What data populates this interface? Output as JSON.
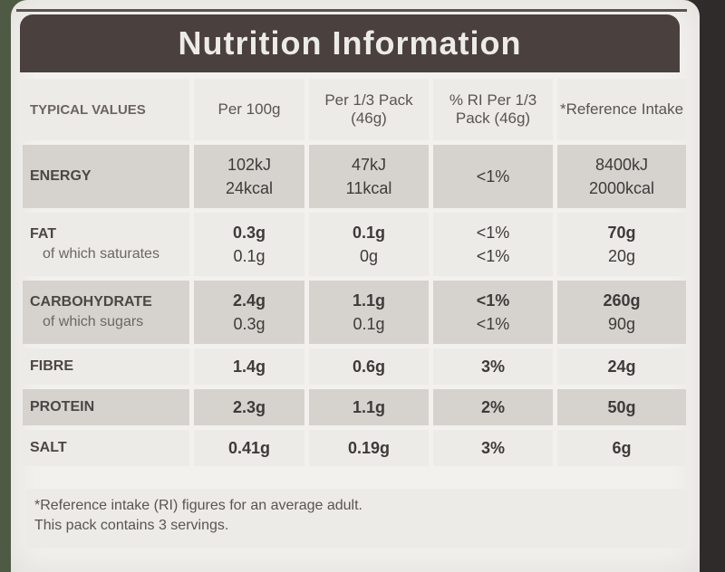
{
  "title": "Nutrition Information",
  "columns": [
    "TYPICAL VALUES",
    "Per 100g",
    "Per 1/3 Pack (46g)",
    "% RI Per 1/3 Pack (46g)",
    "*Reference Intake"
  ],
  "rows": {
    "energy": {
      "label": "ENERGY",
      "per100": [
        "102kJ",
        "24kcal"
      ],
      "perpack": [
        "47kJ",
        "11kcal"
      ],
      "ri": "<1%",
      "ref": [
        "8400kJ",
        "2000kcal"
      ]
    },
    "fat": {
      "label": "FAT",
      "sub": "of which saturates",
      "per100": [
        "0.3g",
        "0.1g"
      ],
      "perpack": [
        "0.1g",
        "0g"
      ],
      "ri": [
        "<1%",
        "<1%"
      ],
      "ref": [
        "70g",
        "20g"
      ]
    },
    "carb": {
      "label": "CARBOHYDRATE",
      "sub": "of which sugars",
      "per100": [
        "2.4g",
        "0.3g"
      ],
      "perpack": [
        "1.1g",
        "0.1g"
      ],
      "ri": [
        "<1%",
        "<1%"
      ],
      "ref": [
        "260g",
        "90g"
      ]
    },
    "fibre": {
      "label": "FIBRE",
      "per100": "1.4g",
      "perpack": "0.6g",
      "ri": "3%",
      "ref": "24g"
    },
    "protein": {
      "label": "PROTEIN",
      "per100": "2.3g",
      "perpack": "1.1g",
      "ri": "2%",
      "ref": "50g"
    },
    "salt": {
      "label": "SALT",
      "per100": "0.41g",
      "perpack": "0.19g",
      "ri": "3%",
      "ref": "6g"
    }
  },
  "footnote": [
    "*Reference intake (RI) figures for an average adult.",
    "This pack contains 3 servings."
  ]
}
